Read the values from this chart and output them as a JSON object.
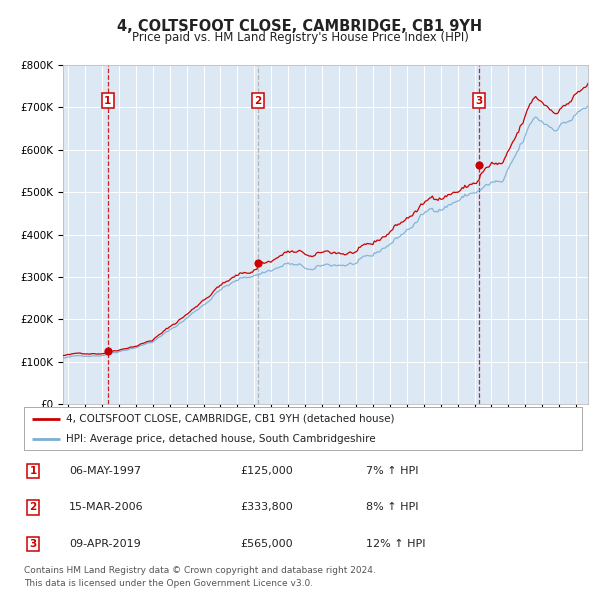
{
  "title": "4, COLTSFOOT CLOSE, CAMBRIDGE, CB1 9YH",
  "subtitle": "Price paid vs. HM Land Registry's House Price Index (HPI)",
  "background_color": "#dce9f5",
  "plot_bg_color": "#dce9f5",
  "red_line_color": "#cc0000",
  "blue_line_color": "#7bafd4",
  "sale_marker_color": "#cc0000",
  "ylim": [
    0,
    800000
  ],
  "xlim_start": 1994.7,
  "xlim_end": 2025.7,
  "sales": [
    {
      "num": 1,
      "date_year": 1997.35,
      "price": 125000,
      "label": "06-MAY-1997",
      "pct": "7%",
      "vline_color": "#cc0000",
      "vline_style": "dashed"
    },
    {
      "num": 2,
      "date_year": 2006.2,
      "price": 333800,
      "label": "15-MAR-2006",
      "pct": "8%",
      "vline_color": "#aaaaaa",
      "vline_style": "dashed"
    },
    {
      "num": 3,
      "date_year": 2019.27,
      "price": 565000,
      "label": "09-APR-2019",
      "pct": "12%",
      "vline_color": "#cc0000",
      "vline_style": "dashed"
    }
  ],
  "legend_line1": "4, COLTSFOOT CLOSE, CAMBRIDGE, CB1 9YH (detached house)",
  "legend_line2": "HPI: Average price, detached house, South Cambridgeshire",
  "footnote": "Contains HM Land Registry data © Crown copyright and database right 2024.\nThis data is licensed under the Open Government Licence v3.0.",
  "yticks": [
    0,
    100000,
    200000,
    300000,
    400000,
    500000,
    600000,
    700000,
    800000
  ],
  "ytick_labels": [
    "£0",
    "£100K",
    "£200K",
    "£300K",
    "£400K",
    "£500K",
    "£600K",
    "£700K",
    "£800K"
  ]
}
